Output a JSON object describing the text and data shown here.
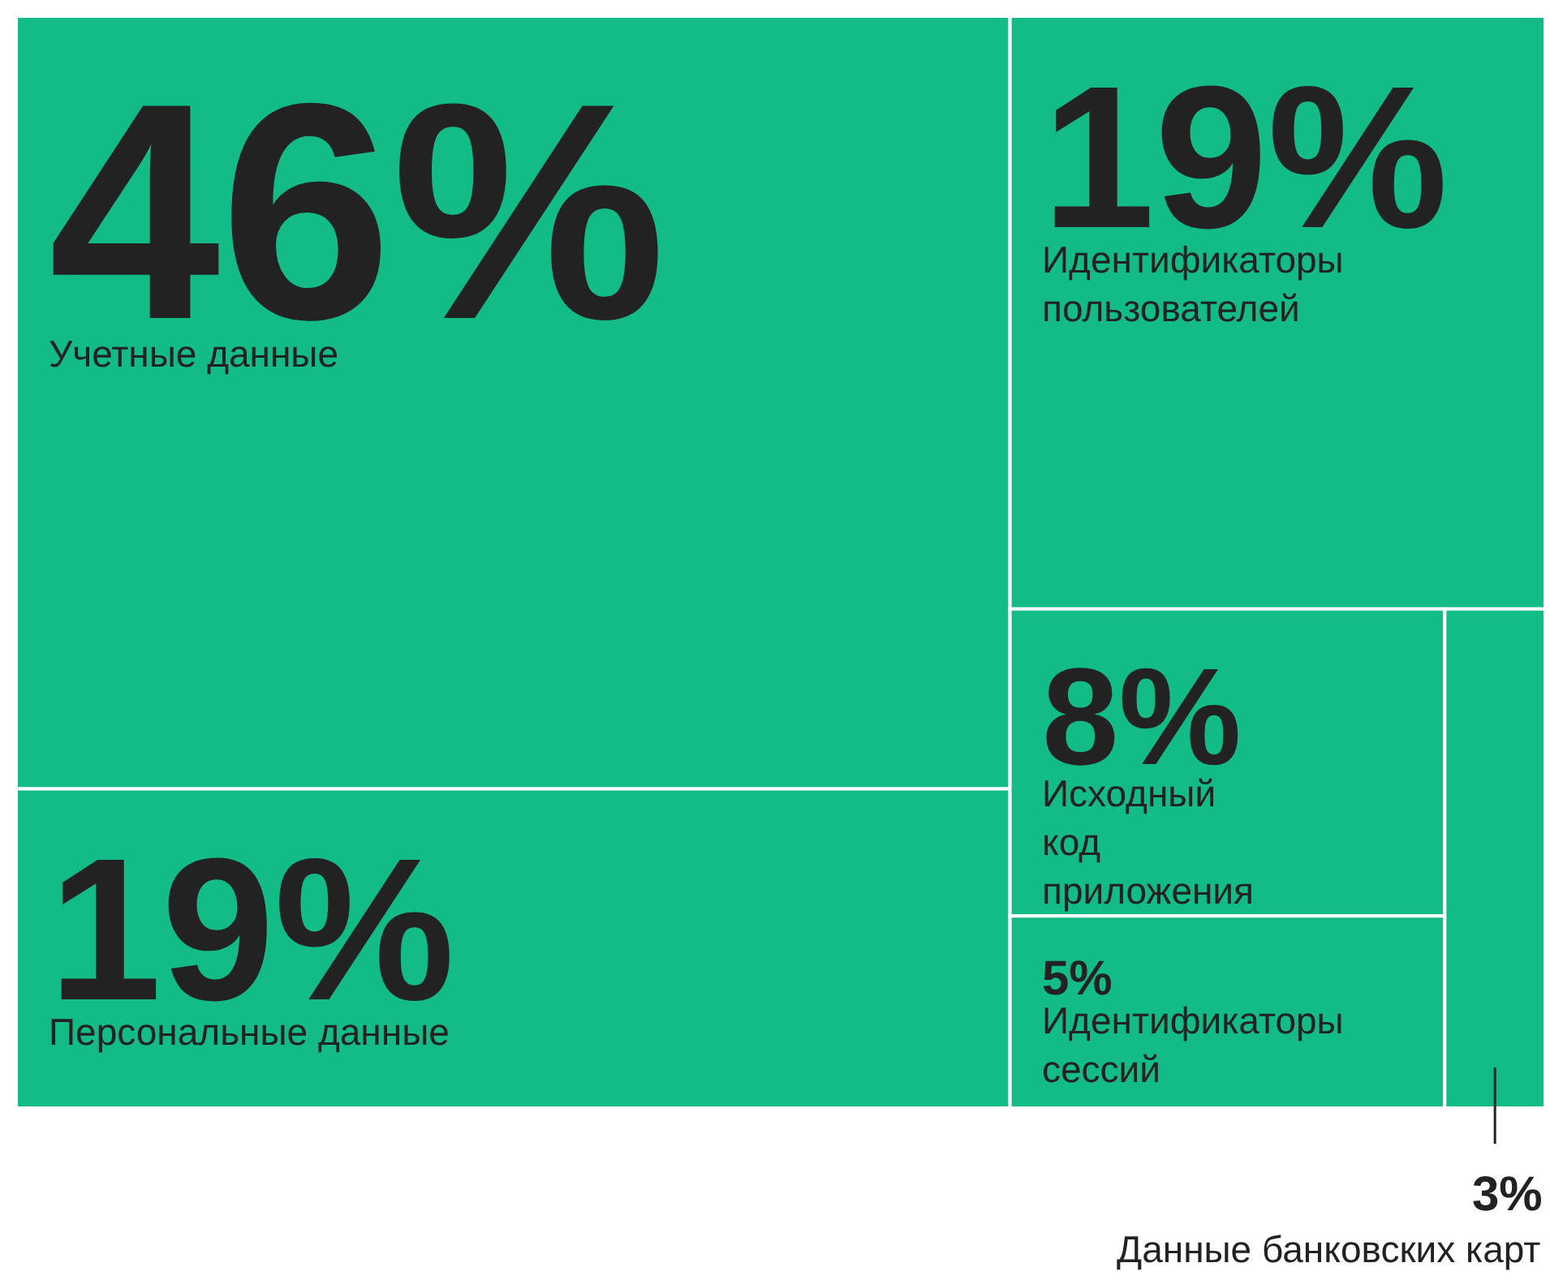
{
  "chart_data": {
    "type": "other",
    "categories": [
      "Учетные данные",
      "Идентификаторы пользователей",
      "Персональные данные",
      "Исходный код приложения",
      "Идентификаторы сессий",
      "Данные банковских карт"
    ],
    "values": [
      46,
      19,
      19,
      8,
      5,
      3
    ],
    "value_labels": [
      "46%",
      "19%",
      "19%",
      "8%",
      "5%",
      "3%"
    ],
    "color": "#13bb86"
  }
}
